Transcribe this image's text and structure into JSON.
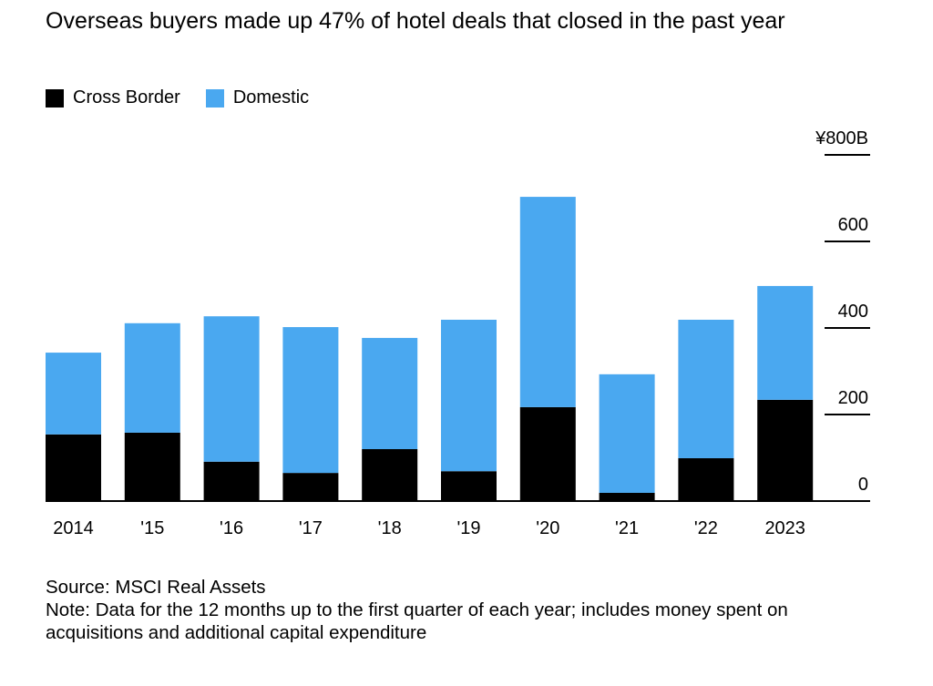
{
  "chart_data": {
    "type": "bar",
    "stacked": true,
    "title": "Overseas buyers made up 47% of hotel deals that closed in the past year",
    "categories": [
      "2014",
      "'15",
      "'16",
      "'17",
      "'18",
      "'19",
      "'20",
      "'21",
      "'22",
      "2023"
    ],
    "series": [
      {
        "name": "Cross Border",
        "color": "#000000",
        "values": [
          154,
          158,
          91,
          65,
          120,
          69,
          217,
          19,
          99,
          234
        ]
      },
      {
        "name": "Domestic",
        "color": "#4aa8f0",
        "values": [
          189,
          253,
          336,
          337,
          257,
          350,
          486,
          274,
          320,
          263
        ]
      }
    ],
    "ylim": [
      0,
      800
    ],
    "yticks": [
      0,
      200,
      400,
      600,
      800
    ],
    "ytick_labels": [
      "0",
      "200",
      "400",
      "600",
      "¥800B"
    ],
    "xlabel": "",
    "ylabel": "",
    "legend_position": "top-left"
  },
  "footer": {
    "source": "Source: MSCI Real Assets",
    "note": "Note: Data for the 12 months up to the first quarter of each year; includes money spent on acquisitions and additional capital expenditure"
  }
}
